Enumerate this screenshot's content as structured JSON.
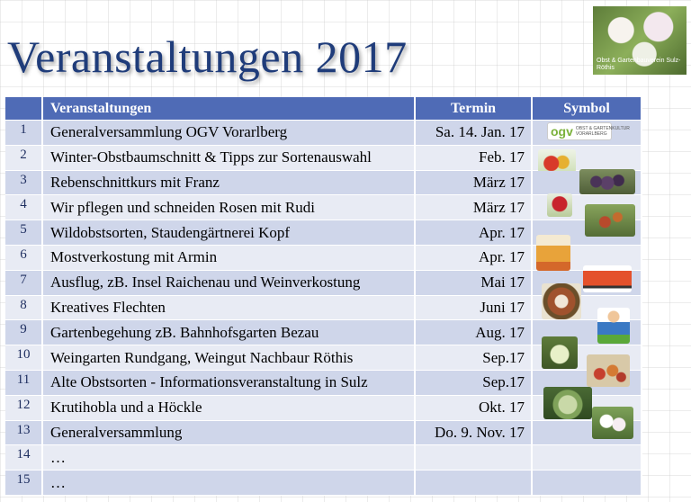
{
  "title": "Veranstaltungen 2017",
  "logo": {
    "text": "Obst & Gartenbauverein Sulz-Röthis"
  },
  "table": {
    "headers": {
      "number": "",
      "event": "Veranstaltungen",
      "date": "Termin",
      "symbol": "Symbol"
    },
    "rows": [
      {
        "num": "1",
        "event": "Generalversammlung OGV Vorarlberg",
        "date": "Sa. 14. Jan. 17",
        "symbol": "ogv-logo"
      },
      {
        "num": "2",
        "event": "Winter-Obstbaumschnitt & Tipps zur Sortenauswahl",
        "date": "Feb. 17",
        "symbol": "apples-image"
      },
      {
        "num": "3",
        "event": "Rebenschnittkurs mit Franz",
        "date": "März 17",
        "symbol": "grapes-image"
      },
      {
        "num": "4",
        "event": "Wir pflegen und schneiden Rosen mit Rudi",
        "date": "März 17",
        "symbol": "rose-image"
      },
      {
        "num": "5",
        "event": "Wildobstsorten, Staudengärtnerei Kopf",
        "date": "Apr. 17",
        "symbol": "wild-fruit-image"
      },
      {
        "num": "6",
        "event": "Mostverkostung mit Armin",
        "date": "Apr. 17",
        "symbol": "cider-image"
      },
      {
        "num": "7",
        "event": "Ausflug, zB. Insel Raichenau und Weinverkostung",
        "date": "Mai 17",
        "symbol": "bus-image"
      },
      {
        "num": "8",
        "event": "Kreatives Flechten",
        "date": "Juni 17",
        "symbol": "wreath-image"
      },
      {
        "num": "9",
        "event": "Gartenbegehung zB. Bahnhofsgarten Bezau",
        "date": "Aug. 17",
        "symbol": "gardener-image"
      },
      {
        "num": "10",
        "event": "Weingarten Rundgang, Weingut Nachbaur Röthis",
        "date": "Sep.17",
        "symbol": "white-grapes-image"
      },
      {
        "num": "11",
        "event": "Alte Obstsorten - Informationsveranstaltung in Sulz",
        "date": "Sep.17",
        "symbol": "old-apples-image"
      },
      {
        "num": "12",
        "event": "Krutihobla und a Höckle",
        "date": "Okt. 17",
        "symbol": "cabbage-image"
      },
      {
        "num": "13",
        "event": "Generalversammlung",
        "date": "Do. 9. Nov. 17",
        "symbol": "blossom-image"
      },
      {
        "num": "14",
        "event": "…",
        "date": "",
        "symbol": ""
      },
      {
        "num": "15",
        "event": "…",
        "date": "",
        "symbol": ""
      }
    ]
  },
  "colors": {
    "title": "#1f3c7a",
    "header": "#4f6bb6",
    "row_odd": "#cfd6ea",
    "row_even": "#e8ebf4"
  }
}
